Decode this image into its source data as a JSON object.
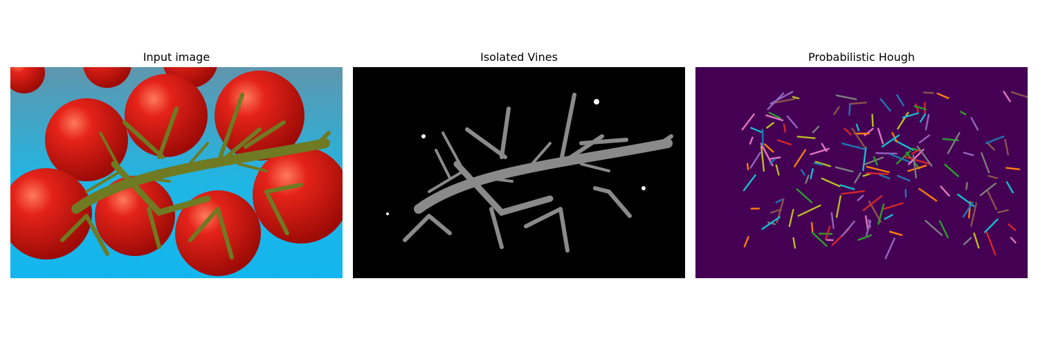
{
  "panels": [
    {
      "title": "Input image"
    },
    {
      "title": "Isolated Vines"
    },
    {
      "title": "Probabilistic Hough"
    }
  ],
  "colors": {
    "page_bg": "#ffffff",
    "hough_bg": "#440154",
    "tray_blue": "#1fb6e4",
    "tomato_red": "#d8140c",
    "vine_green": "#6f7a22",
    "hough_lines": [
      "#1f77b4",
      "#ff7f0e",
      "#2ca02c",
      "#d62728",
      "#9467bd",
      "#8c564b",
      "#e377c2",
      "#7f7f7f",
      "#bcbd22",
      "#17becf"
    ]
  }
}
